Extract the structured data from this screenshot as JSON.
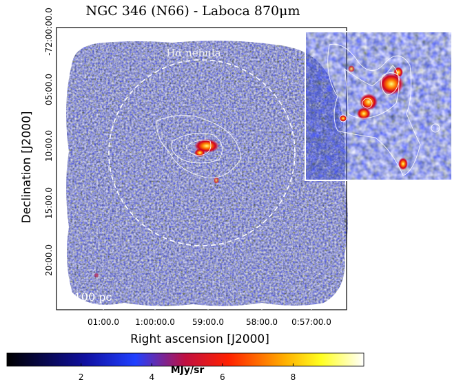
{
  "title": "NGC 346 (N66) - Laboca 870μm",
  "x_axis": {
    "label": "Right ascension [J2000]",
    "ticks": [
      "01:00.0",
      "1:00:00.0",
      "59:00.0",
      "58:00.0",
      "0:57:00.0"
    ]
  },
  "y_axis": {
    "label": "Declination [J2000]",
    "ticks": [
      "-72:00:00.0",
      "05:00.0",
      "10:00.0",
      "15:00.0",
      "20:00.0"
    ]
  },
  "annotations": {
    "nebula": "Hα nebula",
    "scale": "100 pc"
  },
  "colorbar": {
    "label": "MJy/sr",
    "lim": [
      -0.1,
      10
    ],
    "ticks": [
      2,
      4,
      6,
      8
    ]
  }
}
